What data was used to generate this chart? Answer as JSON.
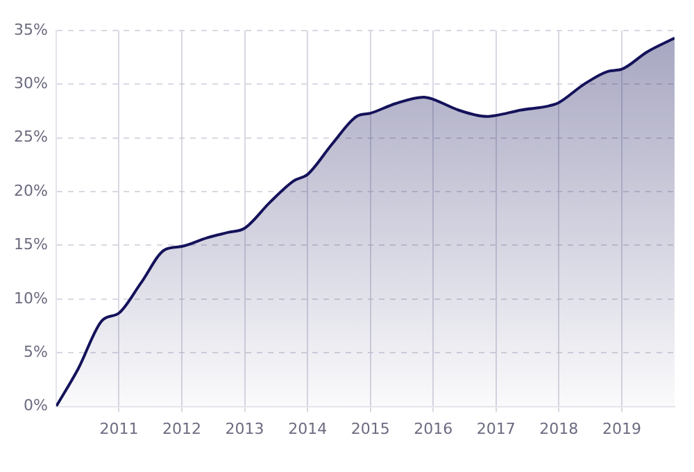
{
  "chart_data": {
    "type": "area",
    "x": [
      2010.0,
      2010.35,
      2010.73,
      2011.0,
      2011.35,
      2011.73,
      2012.0,
      2012.4,
      2012.73,
      2013.0,
      2013.4,
      2013.78,
      2014.0,
      2014.4,
      2014.78,
      2015.0,
      2015.4,
      2015.85,
      2016.0,
      2016.4,
      2016.85,
      2017.0,
      2017.4,
      2017.85,
      2018.0,
      2018.4,
      2018.78,
      2019.0,
      2019.4,
      2019.84
    ],
    "series": [
      {
        "color": "#14125a",
        "values": [
          0,
          3.5,
          8,
          8.7,
          11.5,
          14.6,
          14.9,
          15.7,
          16.2,
          16.6,
          19,
          21,
          21.6,
          24.5,
          27,
          27.3,
          28.2,
          28.8,
          28.6,
          27.6,
          27,
          27.1,
          27.6,
          28,
          28.3,
          30,
          31.2,
          31.4,
          33,
          34.3
        ]
      }
    ],
    "xlim": [
      2010.0,
      2019.84
    ],
    "ylim": [
      0,
      35
    ],
    "xticks": [
      2011,
      2012,
      2013,
      2014,
      2015,
      2016,
      2017,
      2018,
      2019
    ],
    "yticks": [
      {
        "value": 0,
        "label": "0%"
      },
      {
        "value": 5,
        "label": "5%"
      },
      {
        "value": 10,
        "label": "10%"
      },
      {
        "value": 15,
        "label": "15%"
      },
      {
        "value": 20,
        "label": "20%"
      },
      {
        "value": 25,
        "label": "25%"
      },
      {
        "value": 30,
        "label": "30%"
      },
      {
        "value": 35,
        "label": "35%"
      }
    ],
    "grid": true,
    "marker": "none",
    "line_style": "solid"
  }
}
